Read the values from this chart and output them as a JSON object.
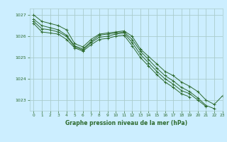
{
  "title": "Graphe pression niveau de la mer (hPa)",
  "background_color": "#cceeff",
  "grid_color": "#aacccc",
  "line_color": "#2d6a2d",
  "xlim": [
    -0.5,
    23
  ],
  "ylim": [
    1022.5,
    1027.3
  ],
  "yticks": [
    1023,
    1024,
    1025,
    1026,
    1027
  ],
  "xticks": [
    0,
    1,
    2,
    3,
    4,
    5,
    6,
    7,
    8,
    9,
    10,
    11,
    12,
    13,
    14,
    15,
    16,
    17,
    18,
    19,
    20,
    21,
    22,
    23
  ],
  "series": [
    [
      1027.0,
      1026.7,
      1026.6,
      1026.5,
      1026.3,
      1025.65,
      1025.5,
      1025.85,
      1026.1,
      1026.15,
      1026.2,
      1026.25,
      1026.0,
      1025.4,
      1025.05,
      1024.7,
      1024.35,
      1024.15,
      1023.85,
      1023.65,
      1023.4,
      1023.0,
      1022.8,
      1023.2
    ],
    [
      1026.8,
      1026.5,
      1026.4,
      1026.3,
      1026.05,
      1025.55,
      1025.4,
      1025.75,
      1026.05,
      1026.1,
      1026.15,
      1026.2,
      1025.85,
      1025.3,
      1024.9,
      1024.5,
      1024.15,
      1023.9,
      1023.6,
      1023.4,
      1023.1,
      1022.75,
      1022.6,
      null
    ],
    [
      1026.7,
      1026.35,
      1026.3,
      1026.2,
      1026.0,
      1025.5,
      1025.35,
      1025.7,
      1025.95,
      1026.0,
      1026.1,
      1026.15,
      1025.7,
      1025.15,
      1024.75,
      1024.35,
      1024.0,
      1023.75,
      1023.45,
      1023.3,
      1023.0,
      1022.7,
      null,
      null
    ],
    [
      1026.6,
      1026.2,
      1026.15,
      1026.1,
      1025.85,
      1025.45,
      1025.3,
      1025.6,
      1025.85,
      1025.9,
      1026.0,
      1026.05,
      1025.55,
      1025.0,
      1024.6,
      1024.2,
      1023.85,
      1023.6,
      1023.3,
      1023.15,
      null,
      null,
      null,
      null
    ]
  ]
}
